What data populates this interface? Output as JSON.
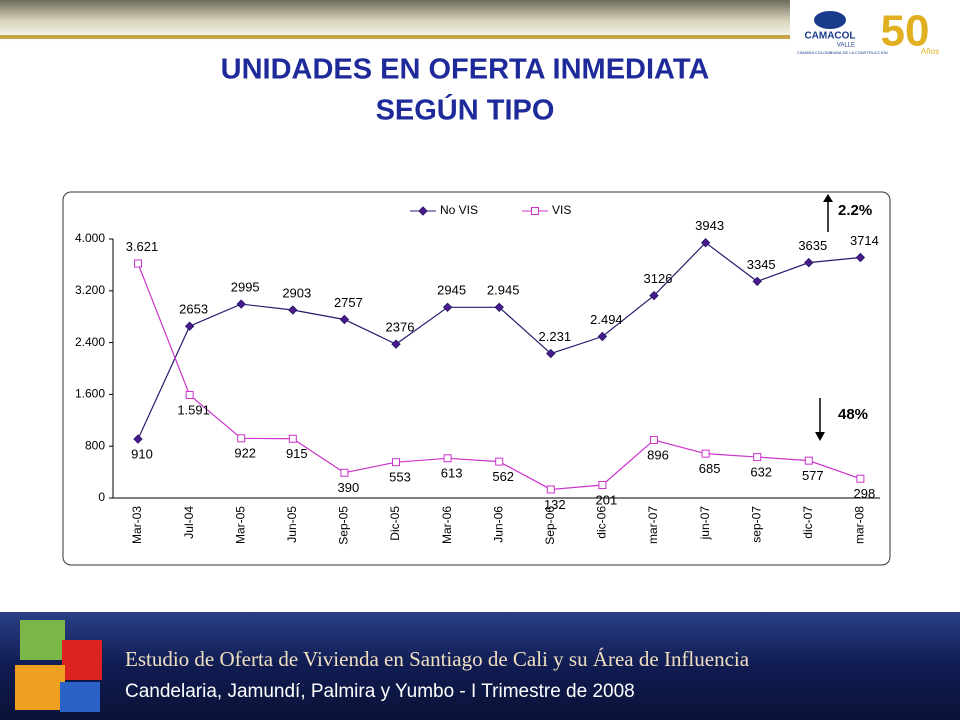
{
  "chart_data": {
    "type": "line",
    "title": [
      "UNIDADES EN OFERTA INMEDIATA",
      "SEGÚN TIPO"
    ],
    "categories": [
      "Mar-03",
      "Jul-04",
      "Mar-05",
      "Jun-05",
      "Sep-05",
      "Dic-05",
      "Mar-06",
      "Jun-06",
      "Sep-06",
      "dic-06",
      "mar-07",
      "jun-07",
      "sep-07",
      "dic-07",
      "mar-08"
    ],
    "series": [
      {
        "name": "No VIS",
        "color": "#2a1a6e",
        "marker": "diamond",
        "values": [
          910,
          2653,
          2995,
          2903,
          2757,
          2376,
          2945,
          2945,
          2231,
          2494,
          3126,
          3943,
          3345,
          3635,
          3714
        ],
        "value_labels": [
          "910",
          "2653",
          "2995",
          "2903",
          "2757",
          "2376",
          "2945",
          "2.945",
          "2.231",
          "2.494",
          "3126",
          "3943",
          "3345",
          "3635",
          "3714"
        ]
      },
      {
        "name": "VIS",
        "color": "#cc33cc",
        "marker": "square",
        "values": [
          3621,
          1591,
          922,
          915,
          390,
          553,
          613,
          562,
          132,
          201,
          896,
          685,
          632,
          577,
          298
        ],
        "value_labels": [
          "3.621",
          "1.591",
          "922",
          "915",
          "390",
          "553",
          "613",
          "562",
          "132",
          "201",
          "896",
          "685",
          "632",
          "577",
          "298"
        ]
      }
    ],
    "ylim": [
      0,
      4000
    ],
    "yticks": [
      0,
      800,
      {
        "value": 1600,
        "label": "1.600"
      },
      {
        "value": 2400,
        "label": "2.400"
      },
      {
        "value": 3200,
        "label": "3.200"
      },
      {
        "value": 4000,
        "label": "4.000"
      }
    ],
    "grid": false,
    "legend": "top",
    "annotations": [
      "2.2%",
      "48%"
    ]
  },
  "logo": {
    "name": "CAMACOL",
    "region": "VALLE",
    "tagline": "CÁMARA COLOMBIANA DE LA CONSTRUCCIÓN",
    "anniversary": "50",
    "anniversary_unit": "Años"
  },
  "footer": {
    "line1": "Estudio de Oferta de Vivienda en Santiago de Cali y su Área de Influencia",
    "line2": "Candelaria, Jamundí, Palmira y Yumbo - I Trimestre de 2008"
  }
}
